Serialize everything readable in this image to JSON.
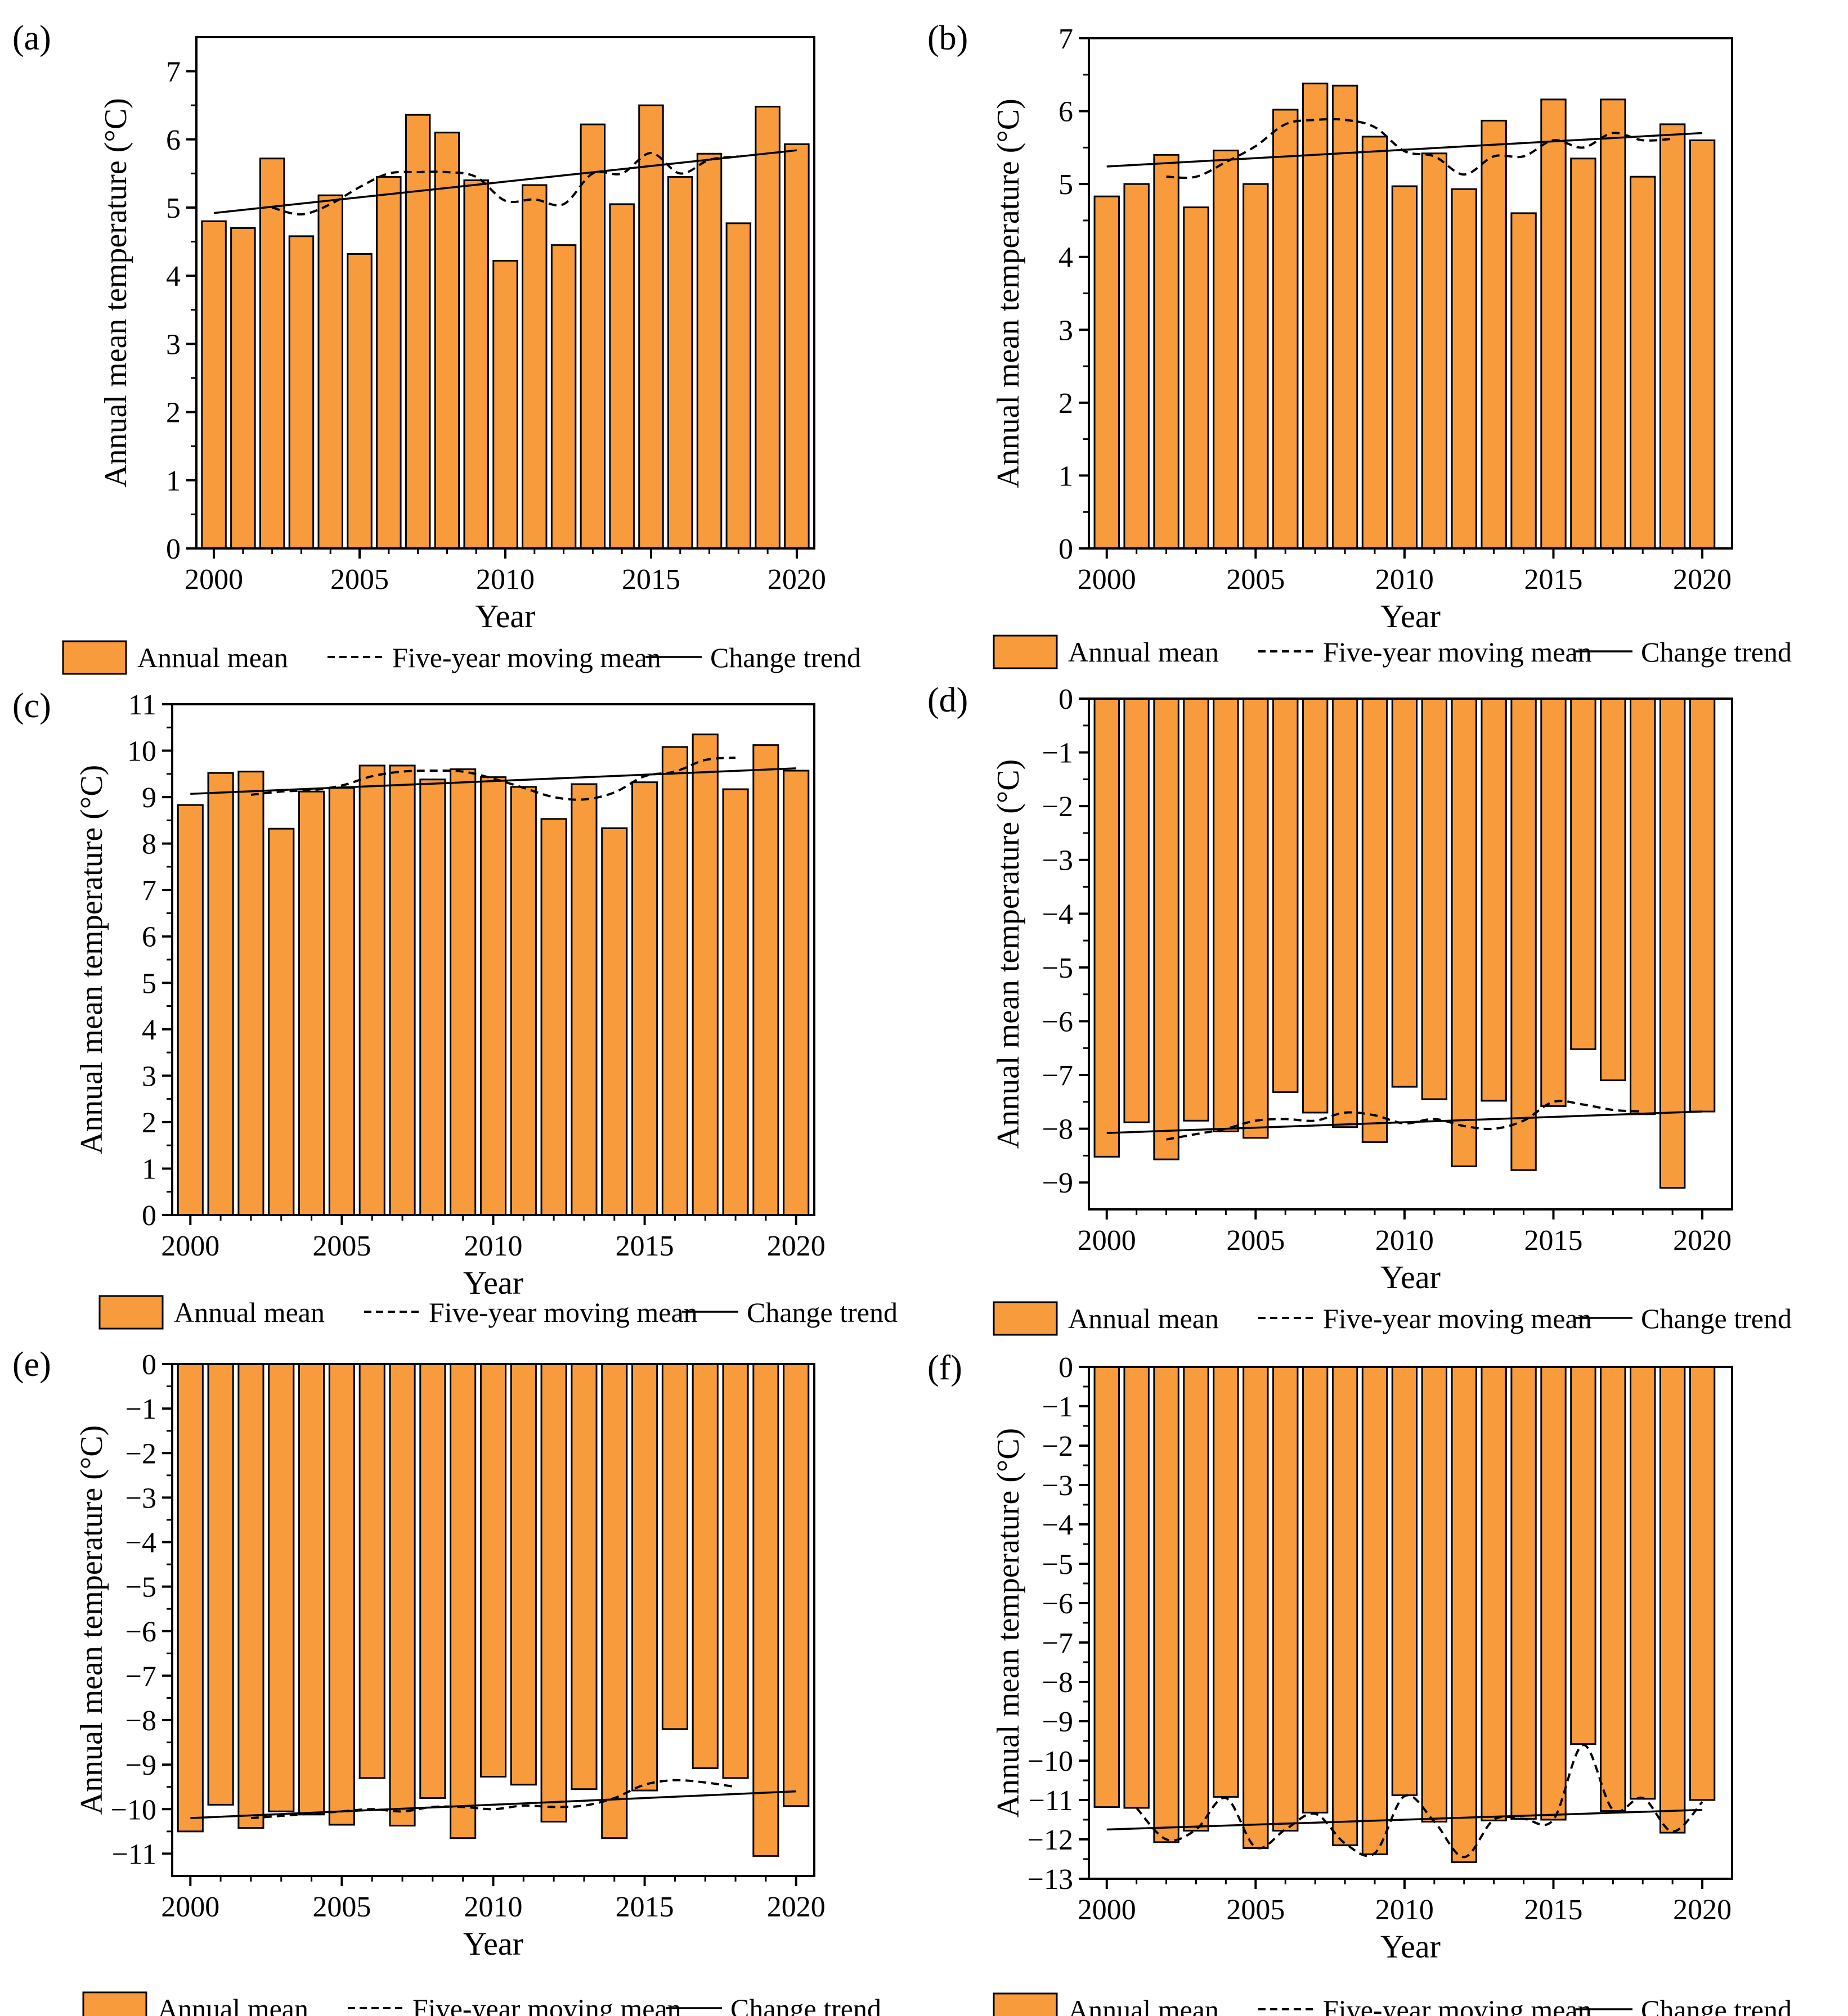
{
  "figure": {
    "legend": {
      "bar_label": "Annual mean",
      "moving_label": "Five-year moving mean",
      "trend_label": "Change trend"
    },
    "colors": {
      "bar": "#F79B3C",
      "bar_edge": "#000000",
      "line": "#000000"
    }
  },
  "chart_data": [
    {
      "id": "a",
      "panel_label": "(a)",
      "type": "bar",
      "xlabel": "Year",
      "ylabel": "Annual mean temperature (°C)",
      "ylim": [
        0,
        7.5
      ],
      "yticks": [
        0,
        1,
        2,
        3,
        4,
        5,
        6,
        7
      ],
      "xlim": [
        1999.4,
        2020.6
      ],
      "xticks": [
        2000,
        2005,
        2010,
        2015,
        2020
      ],
      "years": [
        2000,
        2001,
        2002,
        2003,
        2004,
        2005,
        2006,
        2007,
        2008,
        2009,
        2010,
        2011,
        2012,
        2013,
        2014,
        2015,
        2016,
        2017,
        2018,
        2019,
        2020
      ],
      "values": [
        4.8,
        4.7,
        5.72,
        4.58,
        5.18,
        4.32,
        5.45,
        6.36,
        6.1,
        5.4,
        4.22,
        5.33,
        4.45,
        6.22,
        5.05,
        6.5,
        5.45,
        5.79,
        4.77,
        6.48,
        5.93
      ],
      "moving_mean": {
        "x": [
          2002,
          2003,
          2004,
          2005,
          2006,
          2007,
          2008,
          2009,
          2010,
          2011,
          2012,
          2013,
          2014,
          2015,
          2016,
          2017,
          2018
        ],
        "y": [
          5.0,
          4.9,
          5.05,
          5.3,
          5.5,
          5.52,
          5.52,
          5.45,
          5.1,
          5.12,
          5.05,
          5.5,
          5.5,
          5.8,
          5.5,
          5.7,
          5.75
        ]
      },
      "trend": {
        "x": [
          2000,
          2020
        ],
        "y": [
          4.92,
          5.84
        ]
      }
    },
    {
      "id": "b",
      "panel_label": "(b)",
      "type": "bar",
      "xlabel": "Year",
      "ylabel": "Annual mean temperature (°C)",
      "ylim": [
        0,
        7
      ],
      "yticks": [
        0,
        1,
        2,
        3,
        4,
        5,
        6,
        7
      ],
      "xlim": [
        1999.4,
        2021.0
      ],
      "xticks": [
        2000,
        2005,
        2010,
        2015,
        2020
      ],
      "years": [
        2000,
        2001,
        2002,
        2003,
        2004,
        2005,
        2006,
        2007,
        2008,
        2009,
        2010,
        2011,
        2012,
        2013,
        2014,
        2015,
        2016,
        2017,
        2018,
        2019,
        2020
      ],
      "values": [
        4.83,
        5.0,
        5.4,
        4.68,
        5.46,
        5.0,
        6.02,
        6.38,
        6.35,
        5.65,
        4.97,
        5.42,
        4.93,
        5.87,
        4.6,
        6.16,
        5.35,
        6.16,
        5.1,
        5.82,
        5.6
      ],
      "moving_mean": {
        "x": [
          2002,
          2003,
          2004,
          2005,
          2006,
          2007,
          2008,
          2009,
          2010,
          2011,
          2012,
          2013,
          2014,
          2015,
          2016,
          2017,
          2018,
          2019
        ],
        "y": [
          5.1,
          5.1,
          5.3,
          5.52,
          5.82,
          5.88,
          5.88,
          5.78,
          5.45,
          5.38,
          5.13,
          5.38,
          5.38,
          5.6,
          5.5,
          5.7,
          5.6,
          5.62
        ]
      },
      "trend": {
        "x": [
          2000,
          2020
        ],
        "y": [
          5.24,
          5.7
        ]
      }
    },
    {
      "id": "c",
      "panel_label": "(c)",
      "type": "bar",
      "xlabel": "Year",
      "ylabel": "Annual mean temperature (°C)",
      "ylim": [
        0,
        11
      ],
      "yticks": [
        0,
        1,
        2,
        3,
        4,
        5,
        6,
        7,
        8,
        9,
        10,
        11
      ],
      "xlim": [
        1999.4,
        2020.6
      ],
      "xticks": [
        2000,
        2005,
        2010,
        2015,
        2020
      ],
      "years": [
        2000,
        2001,
        2002,
        2003,
        2004,
        2005,
        2006,
        2007,
        2008,
        2009,
        2010,
        2011,
        2012,
        2013,
        2014,
        2015,
        2016,
        2017,
        2018,
        2019,
        2020
      ],
      "values": [
        8.83,
        9.52,
        9.55,
        8.32,
        9.12,
        9.2,
        9.68,
        9.68,
        9.38,
        9.6,
        9.43,
        9.22,
        8.53,
        9.28,
        8.33,
        9.32,
        10.08,
        10.35,
        9.17,
        10.12,
        9.57
      ],
      "moving_mean": {
        "x": [
          2002,
          2003,
          2004,
          2005,
          2006,
          2007,
          2008,
          2009,
          2010,
          2011,
          2012,
          2013,
          2014,
          2015,
          2016,
          2017,
          2018
        ],
        "y": [
          9.05,
          9.12,
          9.15,
          9.25,
          9.45,
          9.55,
          9.57,
          9.55,
          9.4,
          9.2,
          9.0,
          8.95,
          9.1,
          9.45,
          9.55,
          9.8,
          9.85
        ]
      },
      "trend": {
        "x": [
          2000,
          2020
        ],
        "y": [
          9.07,
          9.62
        ]
      }
    },
    {
      "id": "d",
      "panel_label": "(d)",
      "type": "bar",
      "xlabel": "Year",
      "ylabel": "Annual mean temperature (°C)",
      "ylim": [
        -9.5,
        0
      ],
      "yticks": [
        0,
        -1,
        -2,
        -3,
        -4,
        -5,
        -6,
        -7,
        -8,
        -9
      ],
      "xlim": [
        1999.4,
        2021.0
      ],
      "xticks": [
        2000,
        2005,
        2010,
        2015,
        2020
      ],
      "years": [
        2000,
        2001,
        2002,
        2003,
        2004,
        2005,
        2006,
        2007,
        2008,
        2009,
        2010,
        2011,
        2012,
        2013,
        2014,
        2015,
        2016,
        2017,
        2018,
        2019,
        2020
      ],
      "values": [
        -8.52,
        -7.88,
        -8.57,
        -7.85,
        -8.05,
        -8.17,
        -7.32,
        -7.7,
        -7.97,
        -8.25,
        -7.22,
        -7.45,
        -8.7,
        -7.48,
        -8.77,
        -7.58,
        -6.52,
        -7.1,
        -7.73,
        -9.1,
        -7.68
      ],
      "moving_mean": {
        "x": [
          2002,
          2003,
          2004,
          2005,
          2006,
          2007,
          2008,
          2009,
          2010,
          2011,
          2012,
          2013,
          2014,
          2015,
          2016,
          2017,
          2018
        ],
        "y": [
          -8.2,
          -8.1,
          -8.0,
          -7.85,
          -7.82,
          -7.85,
          -7.7,
          -7.75,
          -7.9,
          -7.82,
          -7.95,
          -8.0,
          -7.85,
          -7.5,
          -7.55,
          -7.65,
          -7.68
        ]
      },
      "trend": {
        "x": [
          2000,
          2020
        ],
        "y": [
          -8.08,
          -7.68
        ]
      }
    },
    {
      "id": "e",
      "panel_label": "(e)",
      "type": "bar",
      "xlabel": "Year",
      "ylabel": "Annual mean temperature (°C)",
      "ylim": [
        -11.5,
        0
      ],
      "yticks": [
        0,
        -1,
        -2,
        -3,
        -4,
        -5,
        -6,
        -7,
        -8,
        -9,
        -10,
        -11
      ],
      "xlim": [
        1999.4,
        2020.6
      ],
      "xticks": [
        2000,
        2005,
        2010,
        2015,
        2020
      ],
      "years": [
        2000,
        2001,
        2002,
        2003,
        2004,
        2005,
        2006,
        2007,
        2008,
        2009,
        2010,
        2011,
        2012,
        2013,
        2014,
        2015,
        2016,
        2017,
        2018,
        2019,
        2020
      ],
      "values": [
        -10.5,
        -9.9,
        -10.42,
        -10.05,
        -10.12,
        -10.35,
        -9.3,
        -10.37,
        -9.75,
        -10.65,
        -9.27,
        -9.45,
        -10.28,
        -9.55,
        -10.65,
        -9.58,
        -8.2,
        -9.08,
        -9.3,
        -11.05,
        -9.93
      ],
      "moving_mean": {
        "x": [
          2002,
          2003,
          2004,
          2005,
          2006,
          2007,
          2008,
          2009,
          2010,
          2011,
          2012,
          2013,
          2014,
          2015,
          2016,
          2017,
          2018
        ],
        "y": [
          -10.2,
          -10.15,
          -10.1,
          -10.05,
          -10.0,
          -10.05,
          -9.95,
          -9.95,
          -10.0,
          -9.92,
          -9.95,
          -9.92,
          -9.75,
          -9.45,
          -9.35,
          -9.4,
          -9.5
        ]
      },
      "trend": {
        "x": [
          2000,
          2020
        ],
        "y": [
          -10.2,
          -9.6
        ]
      }
    },
    {
      "id": "f",
      "panel_label": "(f)",
      "type": "bar",
      "xlabel": "Year",
      "ylabel": "Annual mean temperature (°C)",
      "ylim": [
        -13,
        0
      ],
      "yticks": [
        0,
        -1,
        -2,
        -3,
        -4,
        -5,
        -6,
        -7,
        -8,
        -9,
        -10,
        -11,
        -12,
        -13
      ],
      "xlim": [
        1999.4,
        2021.0
      ],
      "xticks": [
        2000,
        2005,
        2010,
        2015,
        2020
      ],
      "years": [
        2000,
        2001,
        2002,
        2003,
        2004,
        2005,
        2006,
        2007,
        2008,
        2009,
        2010,
        2011,
        2012,
        2013,
        2014,
        2015,
        2016,
        2017,
        2018,
        2019,
        2020
      ],
      "values": [
        -11.18,
        -11.2,
        -12.07,
        -11.78,
        -10.92,
        -12.22,
        -11.78,
        -11.32,
        -12.15,
        -12.38,
        -10.88,
        -11.55,
        -12.58,
        -11.52,
        -11.48,
        -11.5,
        -9.58,
        -11.28,
        -10.97,
        -11.83,
        -11.0
      ],
      "moving_mean": {
        "x": [
          2001,
          2002,
          2003,
          2004,
          2005,
          2006,
          2007,
          2008,
          2009,
          2010,
          2011,
          2012,
          2013,
          2014,
          2015,
          2016,
          2017,
          2018,
          2019,
          2020
        ],
        "y": [
          -11.2,
          -12.0,
          -11.75,
          -10.95,
          -12.2,
          -11.75,
          -11.35,
          -12.1,
          -12.35,
          -10.9,
          -11.55,
          -12.45,
          -11.5,
          -11.48,
          -11.5,
          -9.6,
          -11.25,
          -10.95,
          -11.8,
          -11.05
        ]
      },
      "trend": {
        "x": [
          2000,
          2020
        ],
        "y": [
          -11.75,
          -11.25
        ]
      }
    }
  ]
}
